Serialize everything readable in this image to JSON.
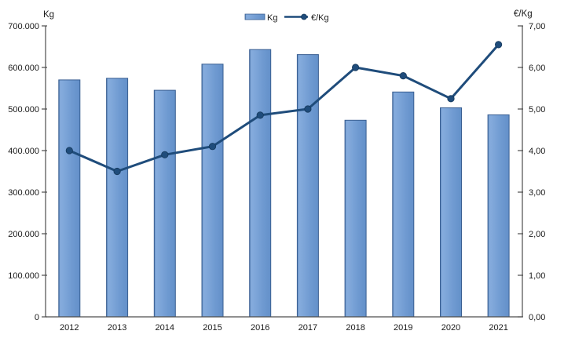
{
  "chart_data": {
    "type": "bar",
    "subtype": "bar+line combo, dual axis",
    "title": "",
    "categories": [
      "2012",
      "2013",
      "2014",
      "2015",
      "2016",
      "2017",
      "2018",
      "2019",
      "2020",
      "2021"
    ],
    "series": [
      {
        "name": "Kg",
        "type": "bar",
        "axis": "left",
        "values": [
          570000,
          574000,
          545000,
          608000,
          643000,
          631000,
          473000,
          541000,
          503000,
          486000
        ]
      },
      {
        "name": "€/Kg",
        "type": "line",
        "axis": "right",
        "values": [
          4.0,
          3.5,
          3.9,
          4.1,
          4.85,
          5.0,
          6.0,
          5.8,
          5.25,
          6.55
        ]
      }
    ],
    "left_axis": {
      "title": "Kg",
      "min": 0,
      "max": 700000,
      "step": 100000,
      "tick_labels_top_to_bottom": [
        "700.000",
        "600.000",
        "500.000",
        "400.000",
        "300.000",
        "200.000",
        "100.000",
        "0"
      ]
    },
    "right_axis": {
      "title": "€/Kg",
      "min": 0,
      "max": 7,
      "step": 1,
      "tick_labels_top_to_bottom": [
        "7,00",
        "6,00",
        "5,00",
        "4,00",
        "3,00",
        "2,00",
        "1,00",
        "0,00"
      ]
    },
    "legend": {
      "position": "top-center",
      "entries": [
        {
          "label": "Kg",
          "swatch": "bar"
        },
        {
          "label": "€/Kg",
          "swatch": "line-with-marker"
        }
      ]
    },
    "grid": "off",
    "colors": {
      "bar_fill": "#6f9ad1",
      "bar_highlight": "#8fb3e2",
      "bar_edge": "#3a5f92",
      "line": "#1f4c7b",
      "marker": "#1f4c7b",
      "marker_edge": "#16395c",
      "axis_line": "#4d4d4d",
      "text": "#1a1a1a",
      "background": "#ffffff"
    }
  }
}
